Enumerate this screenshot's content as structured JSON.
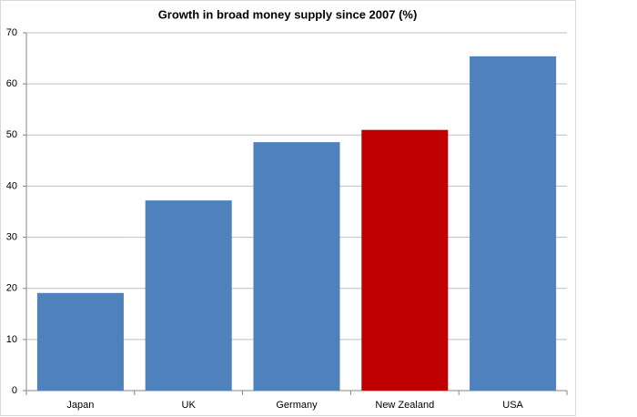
{
  "chart_data": {
    "type": "bar",
    "title": "Growth in broad money supply since 2007 (%)",
    "categories": [
      "Japan",
      "UK",
      "Germany",
      "New Zealand",
      "USA"
    ],
    "values": [
      19.1,
      37.2,
      48.6,
      51.0,
      65.4
    ],
    "colors": [
      "#4f81bd",
      "#4f81bd",
      "#4f81bd",
      "#c00000",
      "#4f81bd"
    ],
    "ylim": [
      0,
      70
    ],
    "yticks": [
      0,
      10,
      20,
      30,
      40,
      50,
      60,
      70
    ],
    "grid": true
  }
}
